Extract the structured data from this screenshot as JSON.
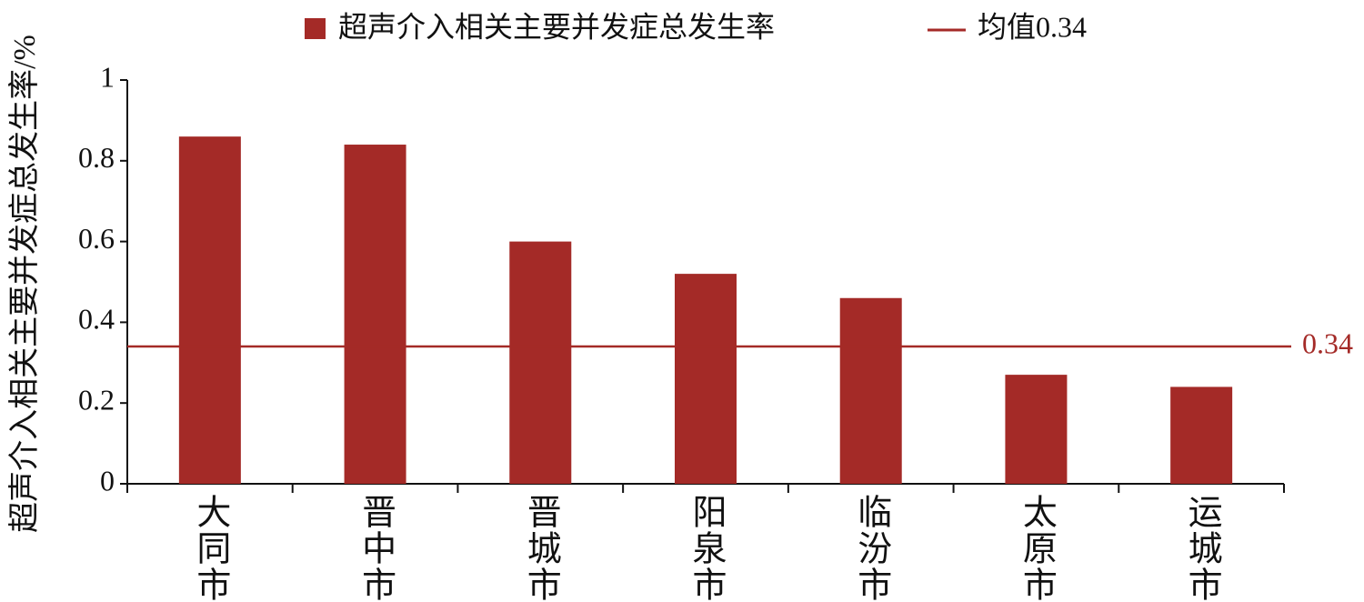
{
  "chart_data": {
    "type": "bar",
    "y_label": "超声介入相关主要并发症总发生率/%",
    "categories": [
      "大同市",
      "晋中市",
      "晋城市",
      "阳泉市",
      "临汾市",
      "太原市",
      "运城市"
    ],
    "series": [
      {
        "name": "超声介入相关主要并发症总发生率",
        "color": "#a42a27",
        "values": [
          0.86,
          0.84,
          0.6,
          0.52,
          0.46,
          0.27,
          0.24
        ]
      }
    ],
    "reference_line": {
      "name": "均值0.34",
      "value": 0.34,
      "color": "#a42a27"
    },
    "ylim": [
      0,
      1
    ],
    "yticks": [
      0,
      0.2,
      0.4,
      0.6,
      0.8,
      1
    ]
  }
}
